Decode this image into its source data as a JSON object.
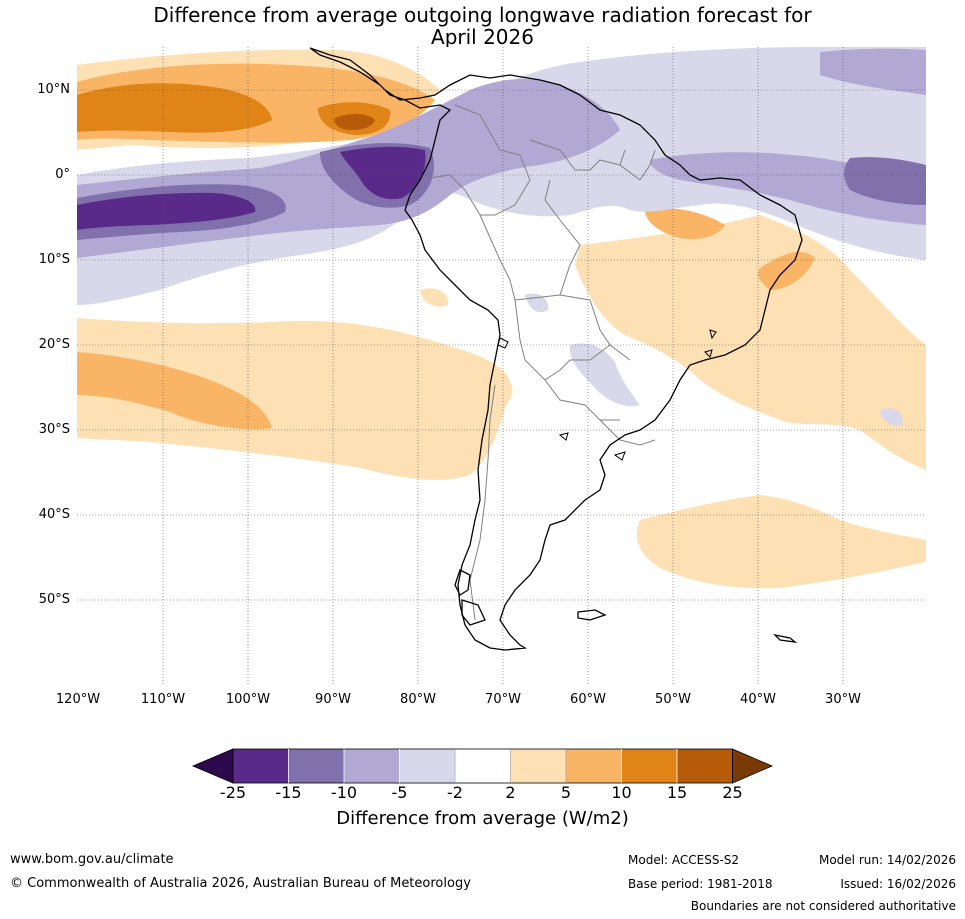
{
  "title": {
    "line1": "Difference from average outgoing longwave radiation forecast for",
    "line2": "April 2026"
  },
  "axes": {
    "lat_labels": [
      "10°N",
      "0°",
      "10°S",
      "20°S",
      "30°S",
      "40°S",
      "50°S"
    ],
    "lon_labels": [
      "120°W",
      "110°W",
      "100°W",
      "90°W",
      "80°W",
      "70°W",
      "60°W",
      "50°W",
      "40°W",
      "30°W"
    ]
  },
  "colorbar": {
    "labels": [
      "-25",
      "-15",
      "-10",
      "-5",
      "-2",
      "2",
      "5",
      "10",
      "15",
      "25"
    ],
    "colors": [
      "#2d0a4e",
      "#5a2a8a",
      "#8070ab",
      "#b1a8d3",
      "#d9d8ea",
      "#ffffff",
      "#fde0b3",
      "#f9b565",
      "#e08418",
      "#b65b0a",
      "#7a3a06"
    ],
    "title": "Difference from average (W/m2)"
  },
  "footer": {
    "url": "www.bom.gov.au/climate",
    "copyright": "© Commonwealth of Australia 2026, Australian Bureau of Meteorology",
    "model": "Model: ACCESS-S2",
    "base_period": "Base period: 1981-2018",
    "model_run": "Model run: 14/02/2026",
    "issued": "Issued: 16/02/2026",
    "disclaimer": "Boundaries are not considered authoritative"
  }
}
